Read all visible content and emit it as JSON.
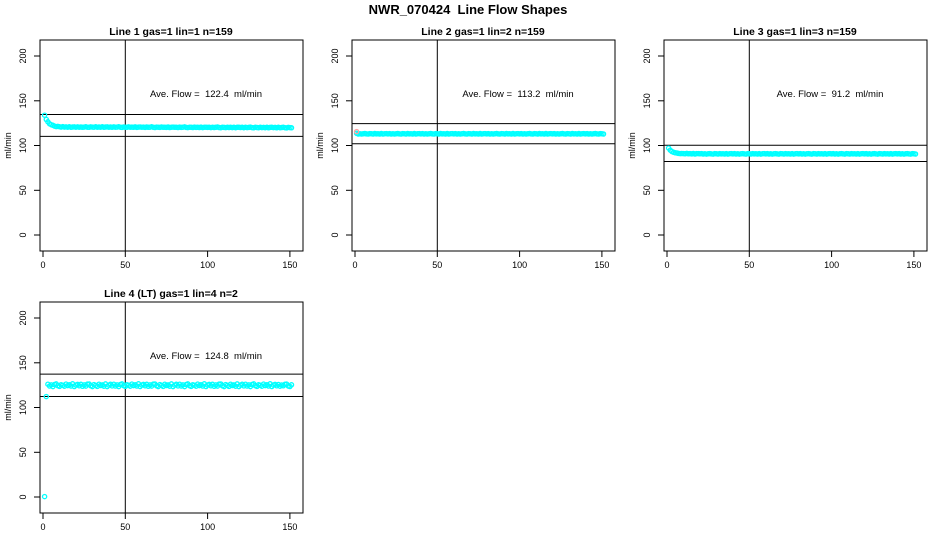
{
  "page": {
    "title": "NWR_070424  Line Flow Shapes"
  },
  "colors": {
    "point": "#00FFFF",
    "first_point": "#FFA0A0",
    "axis": "#000000",
    "background": "#FFFFFF"
  },
  "chart_data": [
    {
      "type": "scatter",
      "title": "Line 1 gas=1 lin=1 n=159",
      "annotation": "Ave. Flow =  122.4  ml/min",
      "ave_flow": 122.4,
      "ref_lines": [
        134.6,
        110.2
      ],
      "vline_x": 50,
      "ylabel": "ml/min",
      "xticks": [
        0,
        50,
        100,
        150
      ],
      "yticks": [
        0,
        50,
        100,
        150,
        200
      ],
      "xlim": [
        -2,
        158
      ],
      "ylim": [
        -18,
        218
      ],
      "grid": false,
      "legend": "none",
      "series": [
        {
          "name": "flow",
          "color": "#00FFFF",
          "x_start": 1,
          "points": [
            133.8,
            129.1,
            126.5,
            124.2,
            123.2,
            122.6,
            121.7,
            121.1,
            121.3,
            121.0,
            120.6,
            121.1,
            120.6,
            120.8,
            120.5,
            120.9,
            120.3,
            120.7,
            120.8,
            120.5,
            120.8,
            120.4,
            120.7,
            120.3,
            120.6,
            120.9,
            120.5,
            120.3,
            120.8,
            120.6,
            120.4,
            120.9,
            120.5,
            120.7,
            120.4,
            120.9,
            120.3,
            120.7,
            120.8,
            120.5,
            120.7,
            120.3,
            120.8,
            120.4,
            120.6,
            121.0,
            120.4,
            120.2,
            120.7,
            120.5,
            120.3,
            120.8,
            120.4,
            120.6,
            120.3,
            120.8,
            120.2,
            120.6,
            120.7,
            120.4,
            120.6,
            120.2,
            120.7,
            120.3,
            120.5,
            120.9,
            120.3,
            120.1,
            120.6,
            120.4,
            120.2,
            120.7,
            120.3,
            120.5,
            120.2,
            120.7,
            120.1,
            120.5,
            120.6,
            120.3,
            120.5,
            120.1,
            120.6,
            120.2,
            120.4,
            120.8,
            120.2,
            120.0,
            120.5,
            120.3,
            120.1,
            120.6,
            120.2,
            120.4,
            120.1,
            120.6,
            120.0,
            120.4,
            120.5,
            120.2,
            120.4,
            120.0,
            120.5,
            120.1,
            120.3,
            120.7,
            120.1,
            119.9,
            120.4,
            120.2,
            120.0,
            120.5,
            120.1,
            120.3,
            120.0,
            120.5,
            119.9,
            120.3,
            120.4,
            120.1,
            120.3,
            119.9,
            120.4,
            120.0,
            120.2,
            120.6,
            120.0,
            119.8,
            120.3,
            120.1,
            119.9,
            120.4,
            120.0,
            120.2,
            119.9,
            120.4,
            119.8,
            120.2,
            120.3,
            120.0,
            120.2,
            119.8,
            120.3,
            119.9,
            120.1,
            120.5,
            119.9,
            119.7,
            120.2,
            120.0,
            119.8
          ]
        }
      ],
      "extra_points": []
    },
    {
      "type": "scatter",
      "title": "Line 2 gas=1 lin=2 n=159",
      "annotation": "Ave. Flow =  113.2  ml/min",
      "ave_flow": 113.2,
      "ref_lines": [
        124.5,
        101.9
      ],
      "vline_x": 50,
      "ylabel": "ml/min",
      "xticks": [
        0,
        50,
        100,
        150
      ],
      "yticks": [
        0,
        50,
        100,
        150,
        200
      ],
      "xlim": [
        -2,
        158
      ],
      "ylim": [
        -18,
        218
      ],
      "grid": false,
      "legend": "none",
      "series": [
        {
          "name": "flow",
          "color": "#00FFFF",
          "x_start": 1,
          "points": [
            113.6,
            112.9,
            113.2,
            112.8,
            113.1,
            113.4,
            113.0,
            112.8,
            113.3,
            113.1,
            112.9,
            113.4,
            113.0,
            113.2,
            112.9,
            113.4,
            112.8,
            113.2,
            113.3,
            113.0,
            113.3,
            112.9,
            113.2,
            112.8,
            113.1,
            113.4,
            113.0,
            112.8,
            113.3,
            113.1,
            112.9,
            113.4,
            113.0,
            113.2,
            112.9,
            113.4,
            112.8,
            113.2,
            113.3,
            113.0,
            113.3,
            112.9,
            113.2,
            112.8,
            113.1,
            113.4,
            113.0,
            112.8,
            113.3,
            113.1,
            112.9,
            113.4,
            113.0,
            113.2,
            112.9,
            113.4,
            112.8,
            113.2,
            113.3,
            113.0,
            113.3,
            112.9,
            113.2,
            112.8,
            113.1,
            113.4,
            113.0,
            112.8,
            113.3,
            113.1,
            112.9,
            113.4,
            113.0,
            113.2,
            112.9,
            113.4,
            112.8,
            113.2,
            113.3,
            113.0,
            113.3,
            112.9,
            113.2,
            112.8,
            113.1,
            113.4,
            113.0,
            112.8,
            113.3,
            113.1,
            112.9,
            113.4,
            113.0,
            113.2,
            112.9,
            113.4,
            112.8,
            113.2,
            113.3,
            113.0,
            113.3,
            112.9,
            113.2,
            112.8,
            113.1,
            113.4,
            113.0,
            112.8,
            113.3,
            113.1,
            112.9,
            113.4,
            113.0,
            113.2,
            112.9,
            113.4,
            112.8,
            113.2,
            113.3,
            113.0,
            113.3,
            112.9,
            113.2,
            112.8,
            113.1,
            113.4,
            113.0,
            112.8,
            113.3,
            113.1,
            112.9,
            113.4,
            113.0,
            113.2,
            112.9,
            113.4,
            112.8,
            113.2,
            113.3,
            113.0,
            113.3,
            112.9,
            113.2,
            112.8,
            113.1,
            113.4,
            113.0,
            112.8,
            113.3,
            113.1,
            112.9
          ]
        }
      ],
      "extra_points": [
        {
          "x": 1,
          "y": 115.5,
          "color": "#FFA0A0",
          "name": "first-sample-point"
        }
      ]
    },
    {
      "type": "scatter",
      "title": "Line 3 gas=1 lin=3 n=159",
      "annotation": "Ave. Flow =  91.2  ml/min",
      "ave_flow": 91.2,
      "ref_lines": [
        100.3,
        82.1
      ],
      "vline_x": 50,
      "ylabel": "ml/min",
      "xticks": [
        0,
        50,
        100,
        150
      ],
      "yticks": [
        0,
        50,
        100,
        150,
        200
      ],
      "xlim": [
        -2,
        158
      ],
      "ylim": [
        -18,
        218
      ],
      "grid": false,
      "legend": "none",
      "series": [
        {
          "name": "flow",
          "color": "#00FFFF",
          "x_start": 1,
          "points": [
            97.1,
            94.8,
            93.3,
            92.4,
            91.8,
            91.6,
            91.2,
            91.0,
            91.1,
            90.9,
            90.7,
            91.2,
            90.7,
            90.9,
            90.6,
            91.1,
            90.5,
            90.9,
            91.0,
            90.7,
            90.9,
            90.5,
            90.8,
            90.4,
            90.7,
            91.0,
            90.6,
            90.4,
            90.9,
            90.7,
            90.5,
            91.0,
            90.6,
            90.8,
            90.5,
            91.0,
            90.4,
            90.8,
            90.9,
            90.6,
            90.9,
            90.5,
            90.8,
            90.4,
            90.7,
            91.0,
            90.6,
            90.4,
            90.9,
            90.7,
            90.5,
            91.0,
            90.6,
            90.8,
            90.5,
            91.0,
            90.4,
            90.8,
            90.9,
            90.6,
            90.9,
            90.5,
            90.8,
            90.4,
            90.7,
            91.0,
            90.6,
            90.4,
            90.9,
            90.7,
            90.5,
            91.0,
            90.6,
            90.8,
            90.5,
            91.0,
            90.4,
            90.8,
            90.9,
            90.6,
            90.9,
            90.5,
            90.8,
            90.4,
            90.7,
            91.0,
            90.6,
            90.4,
            90.9,
            90.7,
            90.5,
            91.0,
            90.6,
            90.8,
            90.5,
            91.0,
            90.4,
            90.8,
            90.9,
            90.6,
            90.9,
            90.5,
            90.8,
            90.4,
            90.7,
            91.0,
            90.6,
            90.4,
            90.9,
            90.7,
            90.5,
            91.0,
            90.6,
            90.8,
            90.5,
            91.0,
            90.4,
            90.8,
            90.9,
            90.6,
            90.9,
            90.5,
            90.8,
            90.4,
            90.7,
            91.0,
            90.6,
            90.4,
            90.9,
            90.7,
            90.5,
            91.0,
            90.6,
            90.8,
            90.5,
            91.0,
            90.4,
            90.8,
            90.9,
            90.6,
            90.9,
            90.5,
            90.8,
            90.4,
            90.7,
            91.0,
            90.6,
            90.4,
            90.9,
            90.7,
            90.5
          ]
        }
      ],
      "extra_points": []
    },
    {
      "type": "scatter",
      "title": "Line 4 (LT) gas=1 lin=4 n=2",
      "annotation": "Ave. Flow =  124.8  ml/min",
      "ave_flow": 124.8,
      "ref_lines": [
        137.3,
        112.3
      ],
      "vline_x": 50,
      "ylabel": "ml/min",
      "xticks": [
        0,
        50,
        100,
        150
      ],
      "yticks": [
        0,
        50,
        100,
        150,
        200
      ],
      "xlim": [
        -2,
        158
      ],
      "ylim": [
        -18,
        218
      ],
      "grid": false,
      "legend": "none",
      "series": [
        {
          "name": "flow",
          "color": "#00FFFF",
          "x_start": 3,
          "points": [
            126.0,
            124.0,
            125.2,
            123.3,
            125.7,
            126.4,
            124.4,
            123.6,
            125.5,
            124.9,
            123.8,
            126.2,
            124.5,
            125.4,
            124.0,
            126.5,
            123.5,
            125.1,
            125.8,
            124.3,
            125.9,
            123.7,
            125.3,
            123.9,
            126.1,
            126.3,
            124.2,
            123.4,
            125.6,
            124.7,
            123.6,
            126.0,
            124.6,
            125.2,
            123.8,
            126.4,
            123.3,
            125.0,
            125.9,
            124.1,
            126.0,
            124.0,
            125.2,
            123.3,
            125.7,
            126.4,
            124.4,
            123.6,
            125.5,
            124.9,
            123.8,
            126.2,
            124.5,
            125.4,
            124.0,
            126.5,
            123.5,
            125.1,
            125.8,
            124.3,
            125.9,
            123.7,
            125.3,
            123.9,
            126.1,
            126.3,
            124.2,
            123.4,
            125.6,
            124.7,
            123.6,
            126.0,
            124.6,
            125.2,
            123.8,
            126.4,
            123.3,
            125.0,
            125.9,
            124.1,
            126.0,
            124.0,
            125.2,
            123.3,
            125.7,
            126.4,
            124.4,
            123.6,
            125.5,
            124.9,
            123.8,
            126.2,
            124.5,
            125.4,
            124.0,
            126.5,
            123.5,
            125.1,
            125.8,
            124.3,
            125.9,
            123.7,
            125.3,
            123.9,
            126.1,
            126.3,
            124.2,
            123.4,
            125.6,
            124.7,
            123.6,
            126.0,
            124.6,
            125.2,
            123.8,
            126.4,
            123.3,
            125.0,
            125.9,
            124.1,
            126.0,
            124.0,
            125.2,
            123.3,
            125.7,
            126.4,
            124.4,
            123.6,
            125.5,
            124.9,
            123.8,
            126.2,
            124.5,
            125.4,
            124.0,
            126.5,
            123.5,
            125.1,
            125.8,
            124.3,
            125.7,
            123.8,
            125.1,
            124.2,
            125.9,
            126.2,
            124.0,
            123.5,
            125.4
          ]
        }
      ],
      "extra_points": [
        {
          "x": 1,
          "y": 0.4,
          "color": "#00FFFF",
          "name": "outlier-point-low"
        },
        {
          "x": 2,
          "y": 112.2,
          "color": "#00FFFF",
          "name": "outlier-point-mid"
        }
      ]
    }
  ]
}
